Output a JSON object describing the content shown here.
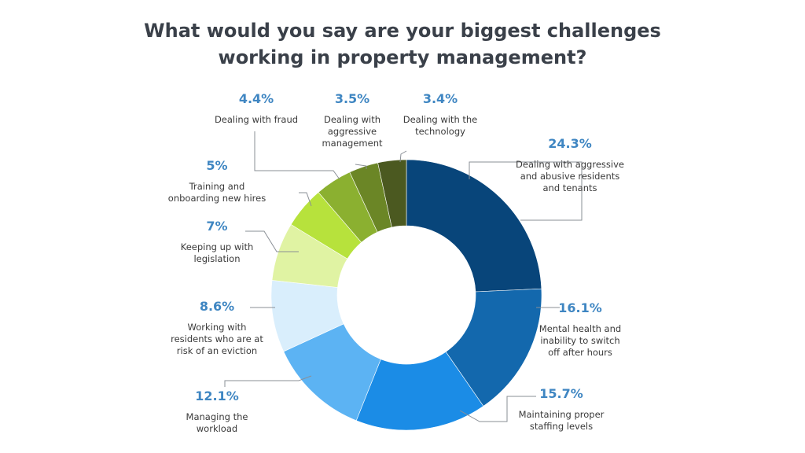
{
  "chart_data": {
    "type": "pie",
    "donut": true,
    "title": [
      "What would you say are your biggest challenges",
      "working in property management?"
    ],
    "slices": [
      {
        "label": [
          "Dealing with aggressive",
          "and abusive residents",
          "and tenants"
        ],
        "value": 24.3,
        "value_label": "24.3%",
        "color": "#08457a"
      },
      {
        "label": [
          "Mental health and",
          "inability to switch",
          "off after hours"
        ],
        "value": 16.1,
        "value_label": "16.1%",
        "color": "#1368ad"
      },
      {
        "label": [
          "Maintaining proper",
          "staffing levels"
        ],
        "value": 15.7,
        "value_label": "15.7%",
        "color": "#1b8ce6"
      },
      {
        "label": [
          "Managing the",
          "workload"
        ],
        "value": 12.1,
        "value_label": "12.1%",
        "color": "#5cb3f3"
      },
      {
        "label": [
          "Working with",
          "residents who are at",
          "risk of an eviction"
        ],
        "value": 8.6,
        "value_label": "8.6%",
        "color": "#d9eefc"
      },
      {
        "label": [
          "Keeping up with",
          "legislation"
        ],
        "value": 7,
        "value_label": "7%",
        "color": "#e0f3a3"
      },
      {
        "label": [
          "Training and",
          "onboarding new hires"
        ],
        "value": 5,
        "value_label": "5%",
        "color": "#b7e23c"
      },
      {
        "label": [
          "Dealing with fraud"
        ],
        "value": 4.4,
        "value_label": "4.4%",
        "color": "#8bb030"
      },
      {
        "label": [
          "Dealing with",
          "aggressive",
          "management"
        ],
        "value": 3.5,
        "value_label": "3.5%",
        "color": "#6b8626"
      },
      {
        "label": [
          "Dealing with the",
          "technology"
        ],
        "value": 3.4,
        "value_label": "3.4%",
        "color": "#4b5920"
      }
    ]
  }
}
